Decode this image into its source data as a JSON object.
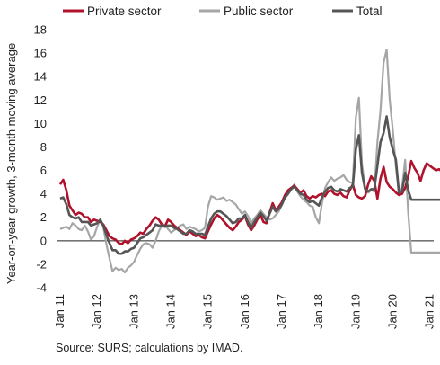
{
  "chart_data": {
    "type": "line",
    "ylabel": "Year-on-year growth, 3-month moving average",
    "ylim": [
      -4,
      18
    ],
    "yticks": [
      "-4",
      "-2",
      "0",
      "2",
      "4",
      "6",
      "8",
      "10",
      "12",
      "14",
      "16",
      "18"
    ],
    "xticks": [
      "Jan 11",
      "Jan 12",
      "Jan 13",
      "Jan 14",
      "Jan 15",
      "Jan 16",
      "Jan 17",
      "Jan 18",
      "Jan 19",
      "Jan 20",
      "Jan 21"
    ],
    "x_start": "Jan 11",
    "x_end": "Dec 21",
    "legend_position": "top",
    "source": "Source: SURS; calculations by IMAD.",
    "grid": false,
    "series": [
      {
        "name": "Private sector",
        "color": "#b0122c",
        "values": [
          4.8,
          5.2,
          4.3,
          3.0,
          2.6,
          2.2,
          2.4,
          2.3,
          2.0,
          2.0,
          1.6,
          1.8,
          1.7,
          1.6,
          1.4,
          0.9,
          0.4,
          0.2,
          0.1,
          -0.2,
          -0.3,
          0.0,
          -0.2,
          0.1,
          0.2,
          0.4,
          0.7,
          0.6,
          1.0,
          1.3,
          1.7,
          2.0,
          1.8,
          1.4,
          1.2,
          1.8,
          1.6,
          1.3,
          1.1,
          0.9,
          0.7,
          0.5,
          0.8,
          0.6,
          0.4,
          0.5,
          0.3,
          0.2,
          0.8,
          1.4,
          1.9,
          2.2,
          2.0,
          1.7,
          1.4,
          1.1,
          0.9,
          1.2,
          1.6,
          1.8,
          2.1,
          1.4,
          0.9,
          1.3,
          1.8,
          2.2,
          1.6,
          1.5,
          2.4,
          3.2,
          2.6,
          2.9,
          3.3,
          3.9,
          4.3,
          4.5,
          4.7,
          4.4,
          4.1,
          4.3,
          3.8,
          3.6,
          3.8,
          3.7,
          3.9,
          4.0,
          3.8,
          4.2,
          4.3,
          4.0,
          3.9,
          4.1,
          3.8,
          3.7,
          4.3,
          4.8,
          3.9,
          3.7,
          3.6,
          3.8,
          4.8,
          5.5,
          5.1,
          3.6,
          5.3,
          6.3,
          5.0,
          4.6,
          4.4,
          4.1,
          3.9,
          4.0,
          4.5,
          5.5,
          6.8,
          6.2,
          5.8,
          5.1,
          6.0,
          6.6,
          6.4,
          6.2,
          6.0,
          6.1,
          5.9,
          6.0,
          6.2,
          6.4,
          6.1,
          6.0,
          6.2,
          6.3
        ]
      },
      {
        "name": "Public sector",
        "color": "#a6a6a6",
        "values": [
          1.0,
          1.1,
          1.2,
          1.0,
          1.5,
          1.3,
          1.0,
          0.9,
          1.3,
          0.8,
          0.1,
          0.4,
          1.2,
          1.8,
          1.2,
          -0.3,
          -1.5,
          -2.6,
          -2.3,
          -2.5,
          -2.4,
          -2.7,
          -2.3,
          -2.1,
          -1.8,
          -1.2,
          -0.7,
          -0.3,
          -0.2,
          -0.3,
          -0.6,
          0.0,
          0.8,
          1.3,
          1.4,
          1.0,
          0.7,
          0.9,
          1.1,
          1.3,
          1.4,
          1.0,
          1.2,
          1.1,
          1.0,
          0.8,
          0.9,
          1.1,
          2.9,
          3.8,
          3.7,
          3.5,
          3.6,
          3.7,
          3.4,
          3.5,
          3.3,
          3.1,
          2.7,
          2.3,
          2.5,
          2.1,
          1.5,
          1.9,
          2.2,
          2.6,
          2.3,
          2.0,
          1.8,
          1.9,
          2.2,
          2.5,
          3.1,
          3.8,
          4.1,
          4.4,
          4.8,
          4.2,
          3.8,
          3.5,
          3.3,
          3.0,
          2.9,
          2.0,
          1.5,
          3.2,
          4.5,
          5.0,
          5.4,
          5.1,
          5.3,
          5.4,
          5.6,
          5.2,
          5.0,
          4.9,
          10.5,
          12.2,
          6.5,
          4.6,
          4.1,
          4.3,
          4.2,
          8.4,
          11.1,
          15.2,
          16.3,
          12.0,
          9.5,
          6.3,
          3.9,
          4.5,
          6.9,
          2.4,
          -1.0,
          -1.0,
          -1.0,
          -1.0,
          -1.0,
          -1.0,
          -1.0,
          -1.0,
          -1.0,
          -1.0,
          -1.0,
          -1.0,
          -1.0,
          -1.0,
          -1.0,
          -1.0,
          -1.0,
          -1.0
        ]
      },
      {
        "name": "Total",
        "color": "#555555",
        "values": [
          3.6,
          3.7,
          3.1,
          2.2,
          2.0,
          1.9,
          2.0,
          1.6,
          1.6,
          1.6,
          1.3,
          1.4,
          1.5,
          1.8,
          1.3,
          0.5,
          -0.2,
          -0.8,
          -0.8,
          -1.1,
          -1.1,
          -0.9,
          -0.9,
          -0.7,
          -0.6,
          -0.2,
          0.2,
          0.3,
          0.5,
          0.7,
          0.9,
          1.4,
          1.3,
          1.3,
          1.2,
          1.3,
          1.3,
          1.1,
          1.0,
          0.8,
          0.6,
          0.6,
          0.9,
          0.8,
          0.6,
          0.6,
          0.6,
          0.5,
          1.2,
          1.9,
          2.3,
          2.5,
          2.5,
          2.3,
          2.1,
          1.8,
          1.5,
          1.6,
          1.9,
          1.9,
          2.2,
          1.6,
          1.1,
          1.6,
          2.0,
          2.4,
          2.1,
          1.7,
          2.3,
          2.9,
          2.5,
          2.7,
          3.1,
          3.7,
          4.0,
          4.4,
          4.6,
          4.3,
          4.0,
          3.9,
          3.5,
          3.3,
          3.4,
          3.2,
          3.0,
          3.7,
          4.2,
          4.5,
          4.6,
          4.3,
          4.2,
          4.4,
          4.3,
          4.2,
          4.5,
          4.6,
          7.8,
          9.0,
          5.8,
          4.4,
          4.2,
          4.4,
          4.4,
          6.4,
          8.4,
          9.2,
          10.6,
          8.8,
          7.8,
          6.9,
          4.1,
          4.2,
          5.8,
          4.3,
          3.5,
          3.5,
          3.5,
          3.5,
          3.5,
          3.5,
          3.5,
          3.5,
          3.5,
          3.5,
          3.5,
          3.5,
          3.5,
          3.5,
          3.5,
          3.5,
          3.5,
          3.5
        ]
      }
    ]
  }
}
